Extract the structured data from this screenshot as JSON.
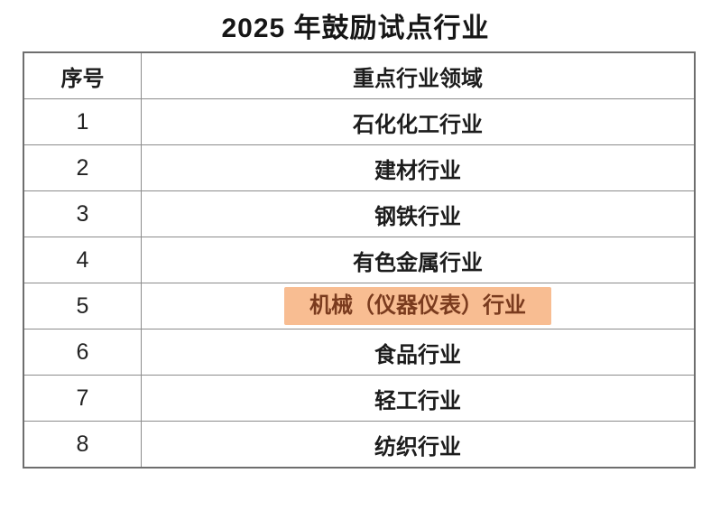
{
  "title": "2025 年鼓励试点行业",
  "table": {
    "headers": {
      "no": "序号",
      "industry": "重点行业领域"
    },
    "rows": [
      {
        "no": "1",
        "industry": "石化化工行业",
        "highlighted": false
      },
      {
        "no": "2",
        "industry": "建材行业",
        "highlighted": false
      },
      {
        "no": "3",
        "industry": "钢铁行业",
        "highlighted": false
      },
      {
        "no": "4",
        "industry": "有色金属行业",
        "highlighted": false
      },
      {
        "no": "5",
        "industry": "机械（仪器仪表）行业",
        "highlighted": true
      },
      {
        "no": "6",
        "industry": "食品行业",
        "highlighted": false
      },
      {
        "no": "7",
        "industry": "轻工行业",
        "highlighted": false
      },
      {
        "no": "8",
        "industry": "纺织行业",
        "highlighted": false
      }
    ]
  },
  "colors": {
    "page_bg": "#ffffff",
    "text": "#1c1c1c",
    "border": "#8c8c8c",
    "outer_border": "#6e6e6e",
    "highlight_bg": "#f8bd92",
    "highlight_text": "#7a3b1e"
  }
}
